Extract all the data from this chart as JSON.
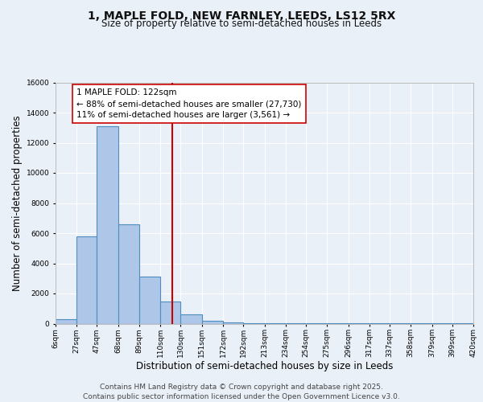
{
  "title": "1, MAPLE FOLD, NEW FARNLEY, LEEDS, LS12 5RX",
  "subtitle": "Size of property relative to semi-detached houses in Leeds",
  "xlabel": "Distribution of semi-detached houses by size in Leeds",
  "ylabel": "Number of semi-detached properties",
  "bar_edges": [
    6,
    27,
    47,
    68,
    89,
    110,
    130,
    151,
    172,
    192,
    213,
    234,
    254,
    275,
    296,
    317,
    337,
    358,
    379,
    399,
    420
  ],
  "bar_heights": [
    300,
    5800,
    13100,
    6600,
    3100,
    1450,
    600,
    200,
    100,
    50,
    30,
    20,
    10,
    5,
    5,
    5,
    5,
    5,
    5,
    5
  ],
  "bar_color": "#aec6e8",
  "bar_edgecolor": "#4f8fc0",
  "vline_x": 122,
  "vline_color": "#cc0000",
  "annotation_line1": "1 MAPLE FOLD: 122sqm",
  "annotation_line2": "← 88% of semi-detached houses are smaller (27,730)",
  "annotation_line3": "11% of semi-detached houses are larger (3,561) →",
  "annotation_box_color": "#ffffff",
  "annotation_box_edgecolor": "#cc0000",
  "ylim": [
    0,
    16000
  ],
  "yticks": [
    0,
    2000,
    4000,
    6000,
    8000,
    10000,
    12000,
    14000,
    16000
  ],
  "background_color": "#eaf0f8",
  "grid_color": "#ffffff",
  "tick_labels": [
    "6sqm",
    "27sqm",
    "47sqm",
    "68sqm",
    "89sqm",
    "110sqm",
    "130sqm",
    "151sqm",
    "172sqm",
    "192sqm",
    "213sqm",
    "234sqm",
    "254sqm",
    "275sqm",
    "296sqm",
    "317sqm",
    "337sqm",
    "358sqm",
    "379sqm",
    "399sqm",
    "420sqm"
  ],
  "footer_line1": "Contains HM Land Registry data © Crown copyright and database right 2025.",
  "footer_line2": "Contains public sector information licensed under the Open Government Licence v3.0.",
  "title_fontsize": 10,
  "subtitle_fontsize": 8.5,
  "axis_label_fontsize": 8.5,
  "tick_fontsize": 6.5,
  "footer_fontsize": 6.5,
  "annotation_fontsize": 7.5
}
